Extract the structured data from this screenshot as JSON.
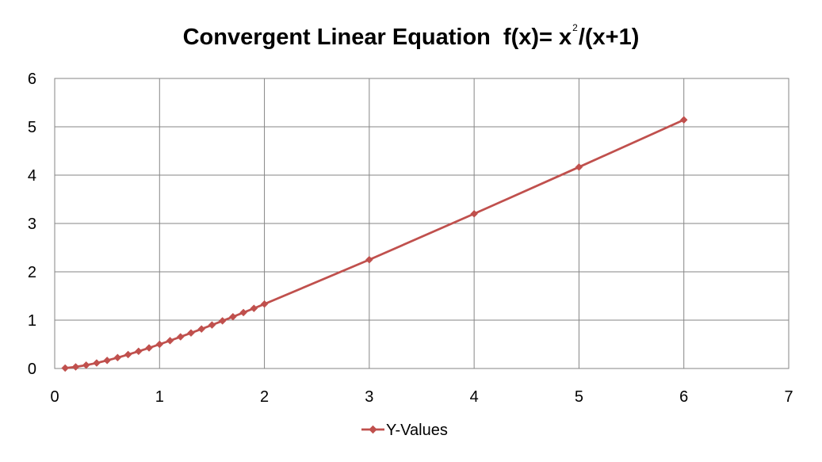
{
  "chart_data": {
    "type": "scatter",
    "title": "Convergent Linear Equation",
    "title_formula": {
      "prefix": "f(x)= x",
      "exponent": "2",
      "suffix": "/(x+1)"
    },
    "xlabel": "",
    "ylabel": "",
    "xlim": [
      0,
      7
    ],
    "ylim": [
      0,
      6
    ],
    "x_ticks": [
      0,
      1,
      2,
      3,
      4,
      5,
      6,
      7
    ],
    "y_ticks": [
      0,
      1,
      2,
      3,
      4,
      5,
      6
    ],
    "grid": true,
    "legend_position": "bottom",
    "style": "line-with-markers",
    "series": [
      {
        "name": "Y-Values",
        "color": "#C0504D",
        "marker": "diamond",
        "x": [
          0.1,
          0.2,
          0.3,
          0.4,
          0.5,
          0.6,
          0.7,
          0.8,
          0.9,
          1.0,
          1.1,
          1.2,
          1.3,
          1.4,
          1.5,
          1.6,
          1.7,
          1.8,
          1.9,
          2.0,
          3,
          4,
          5,
          6
        ],
        "y": [
          0.009,
          0.033,
          0.069,
          0.114,
          0.167,
          0.225,
          0.288,
          0.356,
          0.426,
          0.5,
          0.576,
          0.655,
          0.735,
          0.817,
          0.9,
          0.985,
          1.07,
          1.157,
          1.244,
          1.333,
          2.25,
          3.2,
          4.167,
          5.143
        ]
      }
    ]
  },
  "colors": {
    "gridline": "#868686",
    "series": "#C0504D",
    "text": "#000000"
  }
}
